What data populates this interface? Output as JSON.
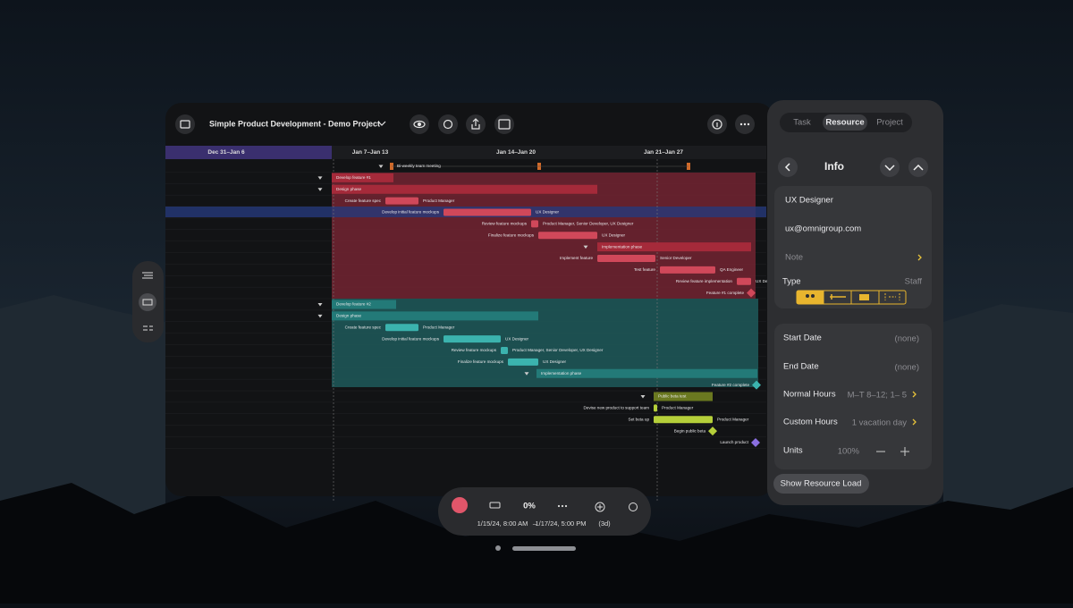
{
  "toolbar": {
    "title": "Simple Product Development - Demo Project"
  },
  "timeline": {
    "weeks": [
      "Dec 31–Jan 6",
      "Jan 7–Jan 13",
      "Jan 14–Jan 20",
      "Jan 21–Jan 27"
    ]
  },
  "gantt": {
    "rows": [
      {
        "name": "Bi-weekly team meeting"
      },
      {
        "name": "Develop feature #1"
      },
      {
        "name": "Design phase"
      },
      {
        "name": "Create feature spec",
        "resource": "Product Manager"
      },
      {
        "name": "Develop initial feature mockups",
        "resource": "UX Designer"
      },
      {
        "name": "Review feature mockups",
        "resource": "Product Manager, Senior Developer, UX Designer"
      },
      {
        "name": "Finalize feature mockups",
        "resource": "UX Designer"
      },
      {
        "name": "Implementation phase"
      },
      {
        "name": "Implement feature",
        "resource": "Senior Developer"
      },
      {
        "name": "Test feature",
        "resource": "QA Engineer"
      },
      {
        "name": "Review feature implementation",
        "resource": "UX Designer"
      },
      {
        "name": "Feature #1 complete"
      },
      {
        "name": "Develop feature #2"
      },
      {
        "name": "Design phase"
      },
      {
        "name": "Create feature spec",
        "resource": "Product Manager"
      },
      {
        "name": "Develop initial feature mockups",
        "resource": "UX Designer"
      },
      {
        "name": "Review feature mockups",
        "resource": "Product Manager, Senior Developer, UX Designer"
      },
      {
        "name": "Finalize feature mockups",
        "resource": "UX Designer"
      },
      {
        "name": "Implementation phase"
      },
      {
        "name": "Feature #2 complete"
      },
      {
        "name": "Public beta test"
      },
      {
        "name": "Devise new product to support team",
        "resource": "Product Manager"
      },
      {
        "name": "Set beta up",
        "resource": "Product Manager"
      },
      {
        "name": "Begin public beta"
      },
      {
        "name": "Launch product"
      }
    ]
  },
  "inspector": {
    "tabs": [
      "Task",
      "Resource",
      "Project"
    ],
    "heading": "Info",
    "name": "UX Designer",
    "email": "ux@omnigroup.com",
    "note": "Note",
    "type_label": "Type",
    "type_value": "Staff",
    "fields": [
      {
        "label": "Start Date",
        "value": "(none)"
      },
      {
        "label": "End Date",
        "value": "(none)"
      },
      {
        "label": "Normal Hours",
        "value": "M–T 8–12; 1– 5"
      },
      {
        "label": "Custom Hours",
        "value": "1 vacation day"
      }
    ],
    "units_label": "Units",
    "units_value": "100%",
    "button": "Show Resource Load"
  },
  "bottom_bar": {
    "percent": "0%",
    "start": "1/15/24, 8:00 AM",
    "dash": "–",
    "end": "1/17/24, 5:00 PM",
    "duration": "(3d)"
  }
}
